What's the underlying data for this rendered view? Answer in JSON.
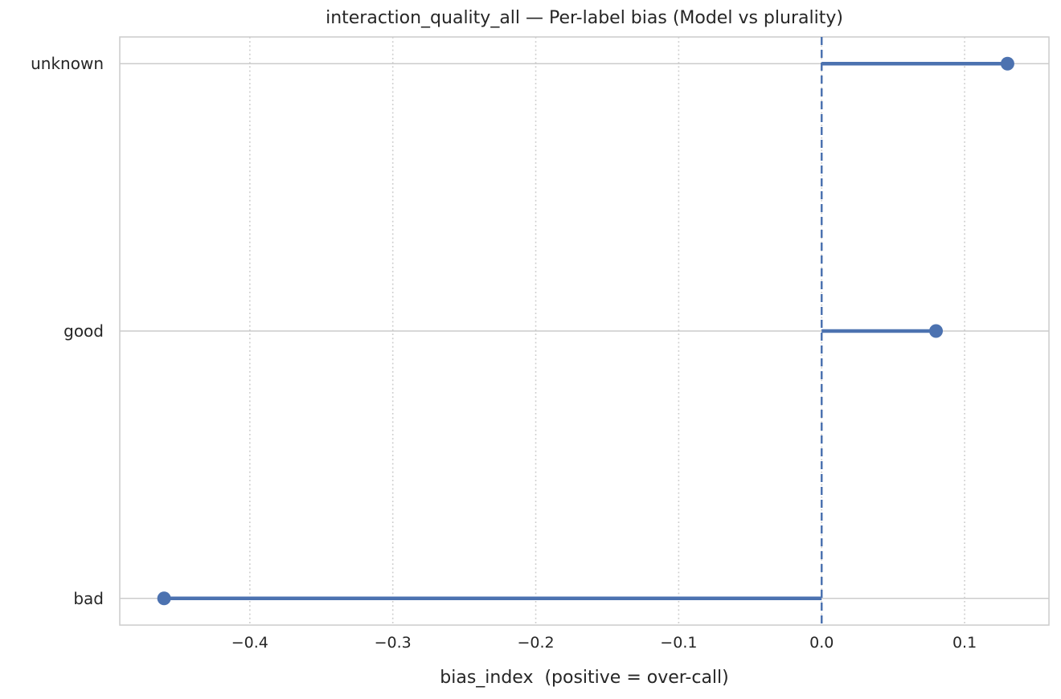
{
  "chart_data": {
    "type": "scatter",
    "style": "horizontal-lollipop-stem-chart",
    "title": "interaction_quality_all — Per-label bias (Model vs plurality)",
    "xlabel": "bias_index  (positive = over-call)",
    "ylabel": "",
    "categories": [
      "unknown",
      "good",
      "bad"
    ],
    "values": [
      0.13,
      0.08,
      -0.46
    ],
    "baseline_x": 0.0,
    "xlim": [
      -0.491,
      0.159
    ],
    "xticks": [
      -0.4,
      -0.3,
      -0.2,
      -0.1,
      0.0,
      0.1
    ],
    "xtick_labels": [
      "−0.4",
      "−0.3",
      "−0.2",
      "−0.1",
      "0.0",
      "0.1"
    ],
    "grid": {
      "vertical_style": "dotted",
      "horizontal_style": "solid",
      "visible": true
    },
    "legend": null,
    "colors": {
      "accent_blue": "#4C72B0",
      "grid": "#cccccc",
      "spine": "#cccccc",
      "text": "#262626",
      "background": "#ffffff"
    }
  }
}
